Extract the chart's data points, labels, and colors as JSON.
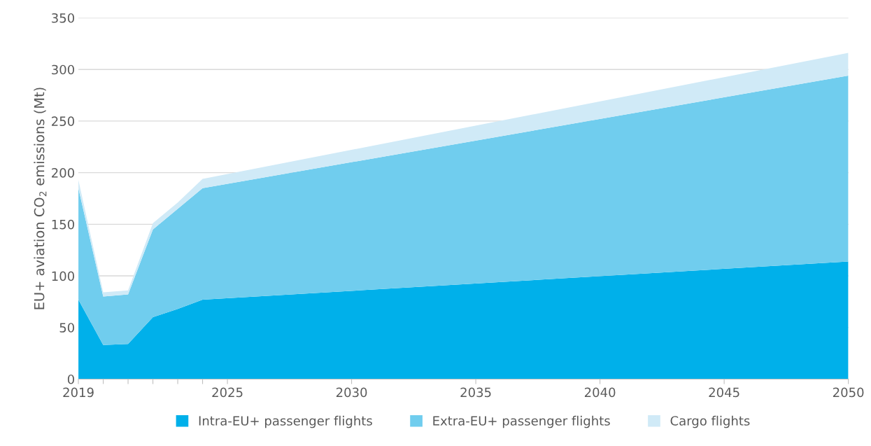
{
  "chart_data": {
    "type": "area",
    "stacked": true,
    "ylabel": "EU+ aviation CO$_{2}$ emissions (Mt)",
    "x": [
      2019,
      2020,
      2021,
      2022,
      2023,
      2024,
      2050
    ],
    "series": [
      {
        "name": "Intra-EU+ passenger flights",
        "color": "#00b0ea",
        "values": [
          77,
          33,
          34,
          60,
          68,
          77,
          114
        ]
      },
      {
        "name": "Extra-EU+ passenger flights",
        "color": "#70cdee",
        "values": [
          108,
          47,
          48,
          85,
          97,
          108,
          180
        ]
      },
      {
        "name": "Cargo flights",
        "color": "#d0eaf7",
        "values": [
          8,
          4,
          4,
          6,
          6,
          9,
          22
        ]
      }
    ],
    "xlim": [
      2019,
      2050
    ],
    "xticks": [
      2019,
      {
        "value": 2020,
        "label": null
      },
      {
        "value": 2021,
        "label": null
      },
      {
        "value": 2022,
        "label": null
      },
      {
        "value": 2023,
        "label": null
      },
      {
        "value": 2024,
        "label": null
      },
      2025,
      2030,
      2035,
      2040,
      2045,
      2050
    ],
    "ylim": [
      0,
      350
    ],
    "yticks": [
      0,
      50,
      100,
      150,
      200,
      250,
      300,
      350
    ],
    "grid": "y",
    "legend": "bottom"
  }
}
